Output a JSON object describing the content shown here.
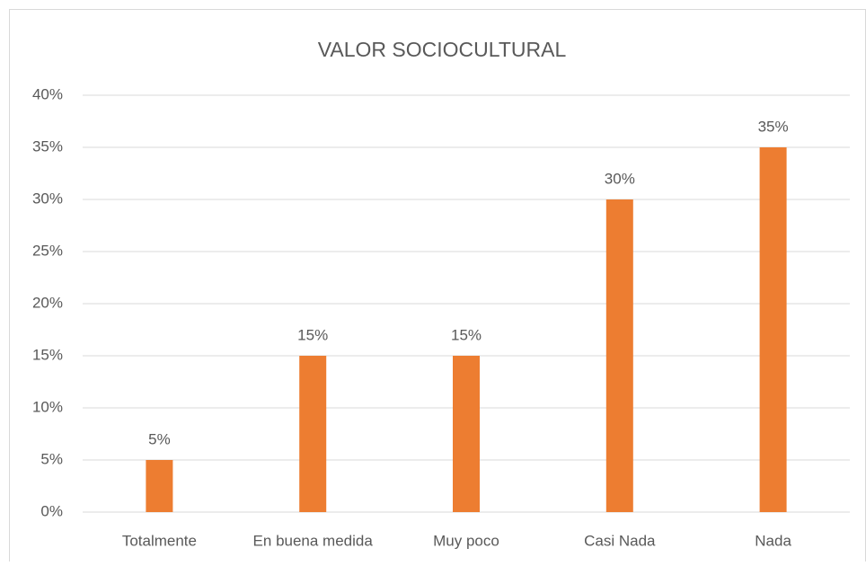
{
  "chart_data": {
    "type": "bar",
    "title": "VALOR SOCIOCULTURAL",
    "categories": [
      "Totalmente",
      "En buena medida",
      "Muy poco",
      "Casi Nada",
      "Nada"
    ],
    "values": [
      5,
      15,
      15,
      30,
      35
    ],
    "value_labels": [
      "5%",
      "15%",
      "15%",
      "30%",
      "35%"
    ],
    "color": "#ed7d31",
    "ylim": [
      0,
      40
    ],
    "yticks": [
      {
        "value": 0,
        "label": "0%"
      },
      {
        "value": 5,
        "label": "5%"
      },
      {
        "value": 10,
        "label": "10%"
      },
      {
        "value": 15,
        "label": "15%"
      },
      {
        "value": 20,
        "label": "20%"
      },
      {
        "value": 25,
        "label": "25%"
      },
      {
        "value": 30,
        "label": "30%"
      },
      {
        "value": 35,
        "label": "35%"
      },
      {
        "value": 40,
        "label": "40%"
      }
    ],
    "grid": true
  }
}
